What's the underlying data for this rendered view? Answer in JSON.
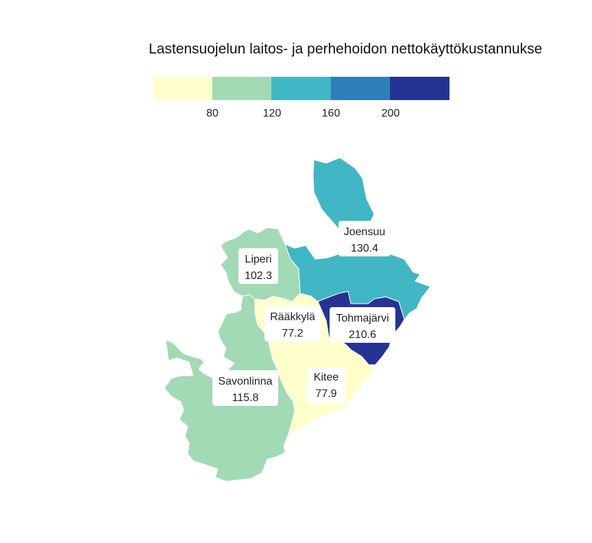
{
  "title": "Lastensuojelun laitos- ja perhehoidon nettokäyttökustannukse",
  "legend": {
    "colors": [
      "#ffffcc",
      "#a1dab4",
      "#41b6c4",
      "#2c7fb8",
      "#253494"
    ],
    "ticks": [
      "80",
      "120",
      "160",
      "200"
    ]
  },
  "municipalities": [
    {
      "name": "Joensuu",
      "value": "130.4",
      "color": "#41b6c4"
    },
    {
      "name": "Liperi",
      "value": "102.3",
      "color": "#a1dab4"
    },
    {
      "name": "Rääkkylä",
      "value": "77.2",
      "color": "#ffffcc"
    },
    {
      "name": "Tohmajärvi",
      "value": "210.6",
      "color": "#253494"
    },
    {
      "name": "Savonlinna",
      "value": "115.8",
      "color": "#a1dab4"
    },
    {
      "name": "Kitee",
      "value": "77.9",
      "color": "#ffffcc"
    }
  ]
}
